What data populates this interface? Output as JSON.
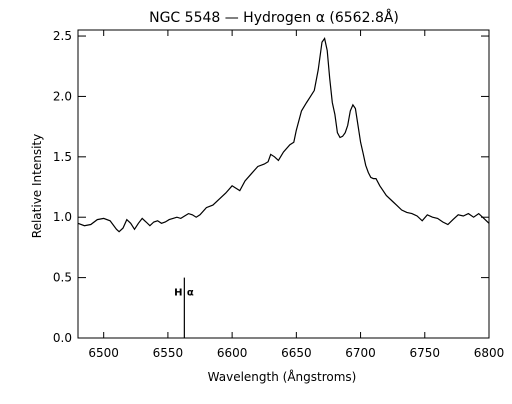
{
  "chart_data": {
    "type": "line",
    "title": "NGC 5548 — Hydrogen α (6562.8Å)",
    "xlabel": "Wavelength (Ångstroms)",
    "ylabel": "Relative Intensity",
    "xlim": [
      6480,
      6800
    ],
    "ylim": [
      0.0,
      2.55
    ],
    "x_ticks": [
      6500,
      6550,
      6600,
      6650,
      6700,
      6750,
      6800
    ],
    "y_ticks": [
      "0.0",
      "0.5",
      "1.0",
      "1.5",
      "2.0",
      "2.5"
    ],
    "grid": false,
    "series": [
      {
        "x": [
          6480,
          6485,
          6490,
          6495,
          6500,
          6505,
          6510,
          6512,
          6515,
          6518,
          6521,
          6524,
          6527,
          6530,
          6533,
          6536,
          6539,
          6542,
          6545,
          6548,
          6551,
          6554,
          6557,
          6560,
          6563,
          6566,
          6569,
          6572,
          6575,
          6580,
          6585,
          6590,
          6595,
          6600,
          6603,
          6606,
          6610,
          6615,
          6620,
          6625,
          6628,
          6630,
          6633,
          6636,
          6640,
          6645,
          6648,
          6650,
          6654,
          6658,
          6661,
          6664,
          6667,
          6670,
          6672,
          6674,
          6676,
          6678,
          6680,
          6682,
          6684,
          6686,
          6688,
          6690,
          6692,
          6694,
          6696,
          6698,
          6700,
          6702,
          6704,
          6706,
          6708,
          6710,
          6712,
          6715,
          6720,
          6725,
          6728,
          6732,
          6736,
          6740,
          6744,
          6748,
          6752,
          6756,
          6760,
          6764,
          6768,
          6772,
          6776,
          6780,
          6784,
          6788,
          6792,
          6796,
          6800
        ],
        "y": [
          0.95,
          0.93,
          0.94,
          0.98,
          0.99,
          0.97,
          0.9,
          0.88,
          0.91,
          0.98,
          0.95,
          0.9,
          0.95,
          0.99,
          0.96,
          0.93,
          0.96,
          0.97,
          0.95,
          0.96,
          0.98,
          0.99,
          1.0,
          0.99,
          1.01,
          1.03,
          1.02,
          1.0,
          1.02,
          1.08,
          1.1,
          1.15,
          1.2,
          1.26,
          1.24,
          1.22,
          1.3,
          1.36,
          1.42,
          1.44,
          1.46,
          1.52,
          1.5,
          1.47,
          1.54,
          1.6,
          1.62,
          1.72,
          1.88,
          1.95,
          2.0,
          2.05,
          2.22,
          2.45,
          2.48,
          2.38,
          2.15,
          1.95,
          1.85,
          1.7,
          1.66,
          1.67,
          1.7,
          1.76,
          1.88,
          1.93,
          1.9,
          1.76,
          1.62,
          1.53,
          1.43,
          1.37,
          1.33,
          1.32,
          1.32,
          1.26,
          1.18,
          1.13,
          1.1,
          1.06,
          1.04,
          1.03,
          1.01,
          0.97,
          1.02,
          1.0,
          0.99,
          0.96,
          0.94,
          0.98,
          1.02,
          1.01,
          1.03,
          1.0,
          1.03,
          0.99,
          0.95
        ]
      }
    ],
    "annotations": [
      {
        "label": "Hα",
        "x": 6562.8,
        "y_top": 0.5,
        "y_bottom": 0.0
      }
    ]
  },
  "marker": {
    "h": "H",
    "alpha": "α"
  }
}
